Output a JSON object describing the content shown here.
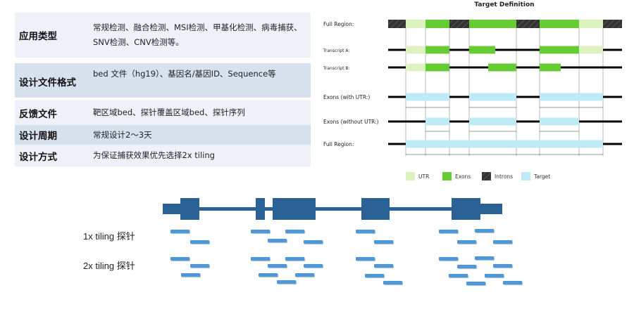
{
  "table": [
    {
      "key": "应用类型",
      "value": "常规检测、融合检测、MSI检测、甲基化检测、病毒捕获、SNV检测、CNV检测等。"
    },
    {
      "key": "设计文件格式",
      "value": "bed 文件（hg19）、基因名/基因ID、Sequence等"
    },
    {
      "key": "反馈文件",
      "value": "靶区域bed、探针覆盖区域bed、探针序列"
    },
    {
      "key": "设计周期",
      "value": "常规设计2～3天"
    },
    {
      "key": "设计方式",
      "value": "为保证捕获效果优先选择2x tiling"
    }
  ],
  "diagram": {
    "title": "Target Definition",
    "rows": [
      "Full Region:",
      "Transcript A:",
      "Transcript B:",
      "Exons (with UTR:)",
      "Exons (without UTR:)",
      "Full Region:"
    ],
    "legend": [
      {
        "label": "UTR",
        "color": "#dcf3bf"
      },
      {
        "label": "Exons",
        "color": "#66cc33"
      },
      {
        "label": "Introns",
        "color": "#333333"
      },
      {
        "label": "Target",
        "color": "#bdeaf5"
      }
    ]
  },
  "tiling": {
    "label_1x": "1x tiling 探针",
    "label_2x": "2x tiling 探针",
    "gene_color": "#2a6296",
    "probe_color": "#4f97d8"
  }
}
